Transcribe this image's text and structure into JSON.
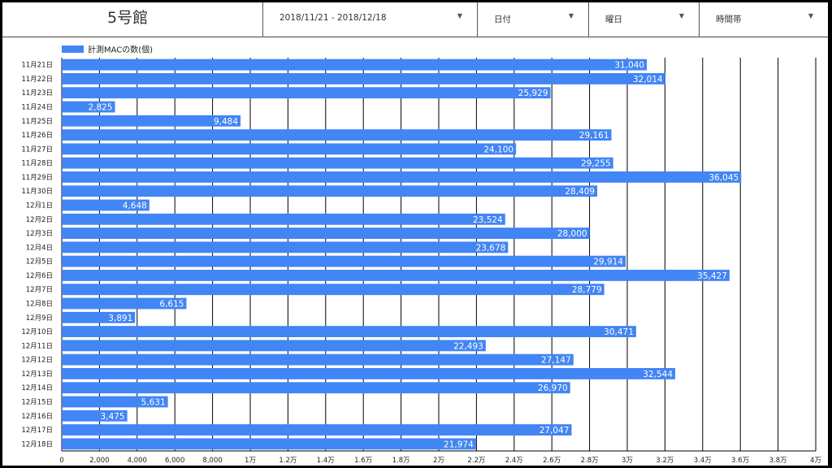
{
  "header": {
    "title": "5号館",
    "filters": [
      {
        "label": "2018/11/21 - 2018/12/18"
      },
      {
        "label": "日付"
      },
      {
        "label": "曜日"
      },
      {
        "label": "時間帯"
      }
    ]
  },
  "colors": {
    "bar": "#4285f4",
    "label_text": "#ffffff",
    "grid": "#000000"
  },
  "chart_data": {
    "type": "bar",
    "orientation": "horizontal",
    "legend": {
      "label": "計測MACの数(個)",
      "placement": "top-left"
    },
    "categories": [
      "11月21日",
      "11月22日",
      "11月23日",
      "11月24日",
      "11月25日",
      "11月26日",
      "11月27日",
      "11月28日",
      "11月29日",
      "11月30日",
      "12月1日",
      "12月2日",
      "12月3日",
      "12月4日",
      "12月5日",
      "12月6日",
      "12月7日",
      "12月8日",
      "12月9日",
      "12月10日",
      "12月11日",
      "12月12日",
      "12月13日",
      "12月14日",
      "12月15日",
      "12月16日",
      "12月17日",
      "12月18日"
    ],
    "series": [
      {
        "name": "計測MACの数(個)",
        "values": [
          31040,
          32014,
          25929,
          2825,
          9484,
          29161,
          24100,
          29255,
          36045,
          28409,
          4648,
          23524,
          28000,
          23678,
          29914,
          35427,
          28779,
          6615,
          3891,
          30471,
          22493,
          27147,
          32544,
          26970,
          5631,
          3475,
          27047,
          21974
        ],
        "value_labels": [
          "31,040",
          "32,014",
          "25,929",
          "2,825",
          "9,484",
          "29,161",
          "24,100",
          "29,255",
          "36,045",
          "28,409",
          "4,648",
          "23,524",
          "28,000",
          "23,678",
          "29,914",
          "35,427",
          "28,779",
          "6,615",
          "3,891",
          "30,471",
          "22,493",
          "27,147",
          "32,544",
          "26,970",
          "5,631",
          "3,475",
          "27,047",
          "21,974"
        ]
      }
    ],
    "xlim": [
      0,
      40000
    ],
    "x_ticks": [
      0,
      2000,
      4000,
      6000,
      8000,
      10000,
      12000,
      14000,
      16000,
      18000,
      20000,
      22000,
      24000,
      26000,
      28000,
      30000,
      32000,
      34000,
      36000,
      38000,
      40000
    ],
    "x_tick_labels": [
      "0",
      "2,000",
      "4,000",
      "6,000",
      "8,000",
      "1万",
      "1.2万",
      "1.4万",
      "1.6万",
      "1.8万",
      "2万",
      "2.2万",
      "2.4万",
      "2.6万",
      "2.8万",
      "3万",
      "3.2万",
      "3.4万",
      "3.6万",
      "3.8万",
      "4万"
    ],
    "grid": true
  }
}
